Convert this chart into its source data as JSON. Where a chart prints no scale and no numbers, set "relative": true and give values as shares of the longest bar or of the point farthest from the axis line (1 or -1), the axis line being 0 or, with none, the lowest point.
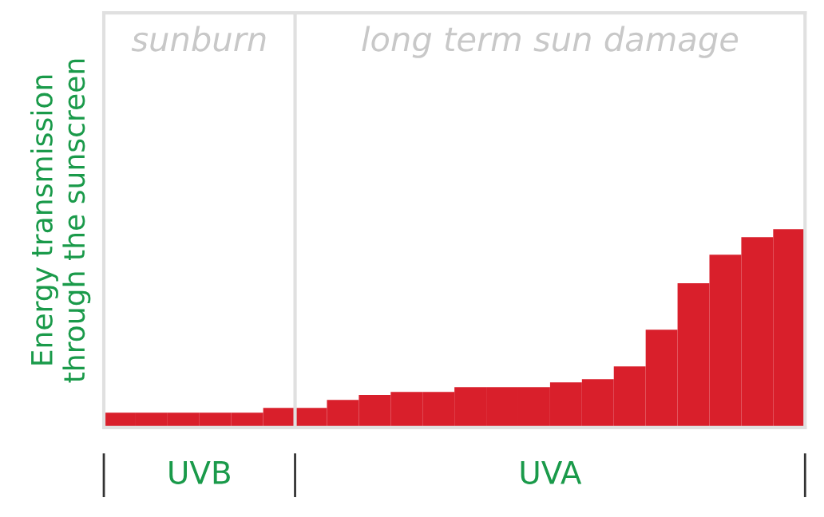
{
  "chart_data": {
    "type": "bar",
    "relative": true,
    "ylabel": "Energy transmission\nthrough the sunscreen",
    "categories": [
      null,
      null,
      null,
      null,
      null,
      null,
      null,
      null,
      null,
      null,
      null,
      null,
      null,
      null,
      null,
      null,
      null,
      null,
      null,
      null,
      null,
      null
    ],
    "values": [
      0.075,
      0.075,
      0.075,
      0.075,
      0.075,
      0.099,
      0.099,
      0.139,
      0.164,
      0.18,
      0.18,
      0.204,
      0.204,
      0.204,
      0.228,
      0.244,
      0.308,
      0.493,
      0.727,
      0.871,
      0.96,
      1
    ],
    "color": "#d91f2b",
    "annotations": [
      "sunburn",
      "long term sun damage",
      "UVB",
      "UVA"
    ],
    "grid": false,
    "legend": false
  }
}
